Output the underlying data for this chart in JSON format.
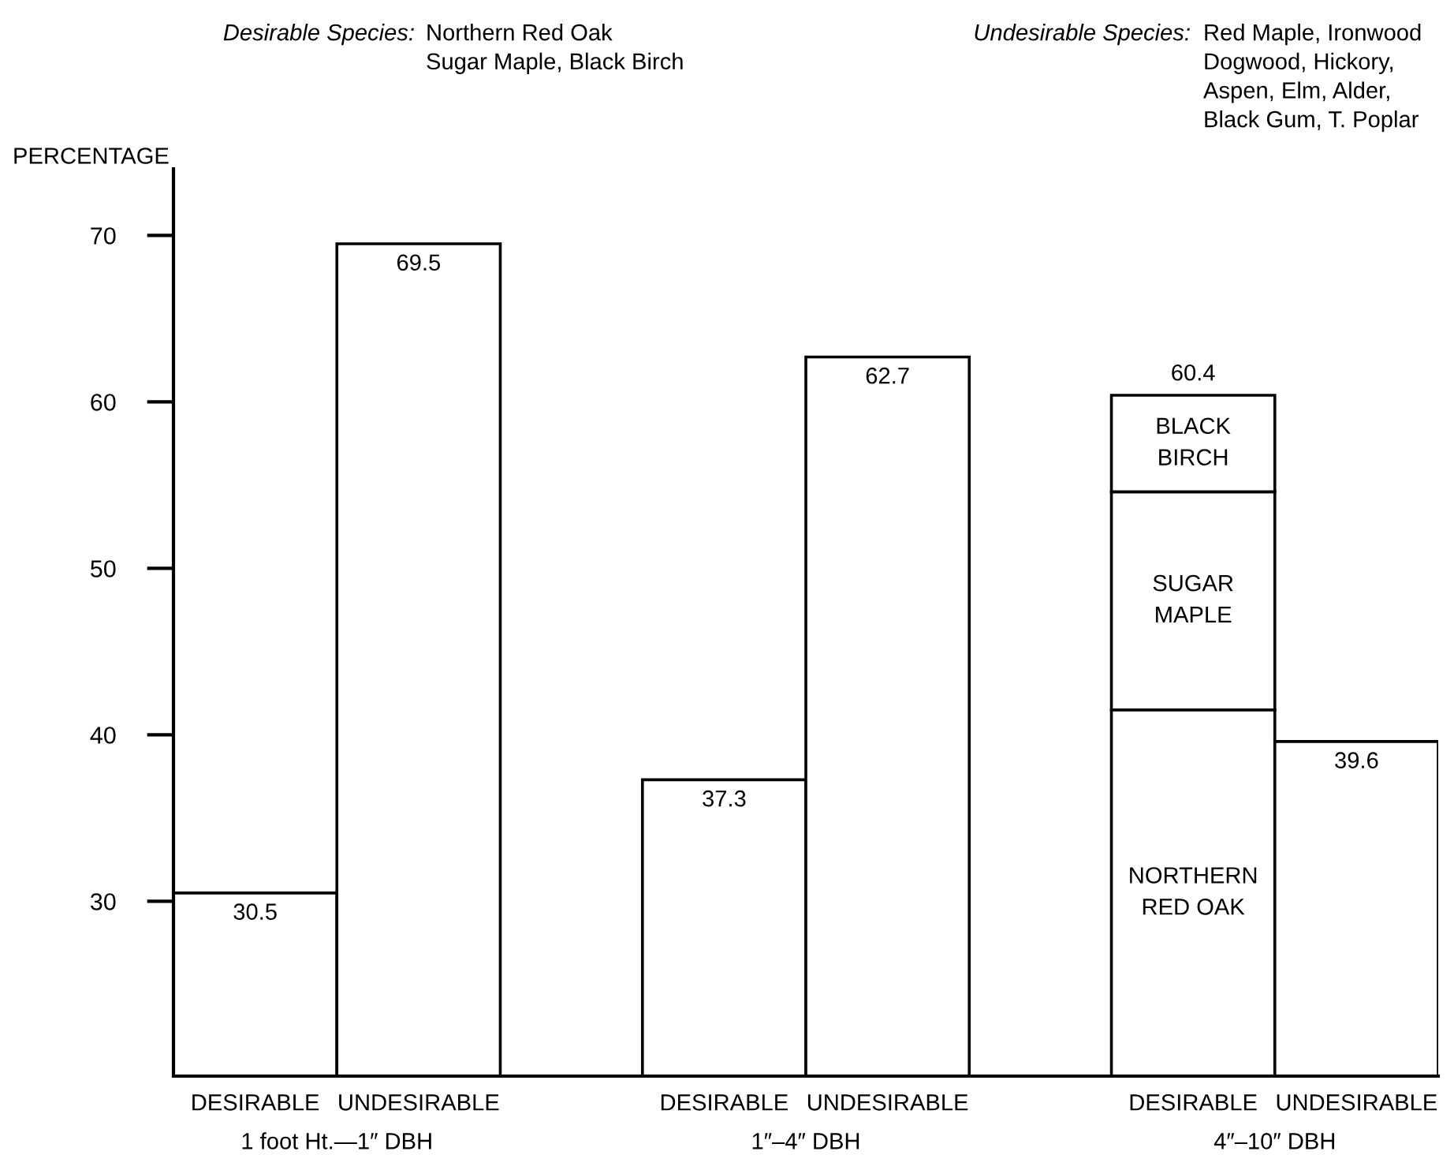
{
  "chart_data": {
    "type": "bar",
    "ylabel": "PERCENTAGE",
    "categories": [
      "DESIRABLE",
      "UNDESIRABLE",
      "DESIRABLE",
      "UNDESIRABLE",
      "DESIRABLE",
      "UNDESIRABLE"
    ],
    "series": [
      {
        "name": "NORTHERN\nRED OAK",
        "color": "#ffffff",
        "values": [
          30.5,
          69.5,
          37.3,
          62.7,
          41.5,
          39.6
        ]
      },
      {
        "name": "SUGAR\nMAPLE",
        "color": "#ffffff",
        "base": [
          null,
          null,
          null,
          null,
          41.5,
          null
        ],
        "values": [
          null,
          null,
          null,
          null,
          13.1,
          null
        ]
      },
      {
        "name": "BLACK\nBIRCH",
        "color": "#ffffff",
        "base": [
          null,
          null,
          null,
          null,
          54.6,
          null
        ],
        "values": [
          null,
          null,
          null,
          null,
          5.8,
          null
        ]
      }
    ],
    "totals": [
      "30.5",
      "69.5",
      "37.3",
      "62.7",
      "60.4",
      "39.6"
    ],
    "ylim": [
      19.5,
      74
    ],
    "yticks": [
      30,
      40,
      50,
      60,
      70
    ],
    "grid": false,
    "legend": false,
    "annotations": [
      "Desirable Species:",
      "Northern Red Oak\nSugar Maple, Black Birch",
      "Undesirable Species:",
      "Red Maple, Ironwood\nDogwood, Hickory,\nAspen, Elm, Alder,\nBlack Gum, T. Poplar",
      "1 foot Ht.—1″ DBH",
      "1″–4″ DBH",
      "4″–10″ DBH"
    ]
  }
}
